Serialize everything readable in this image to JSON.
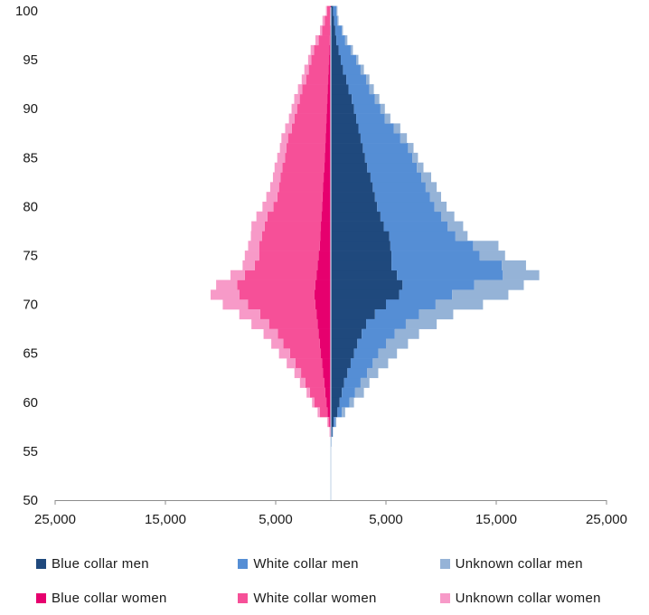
{
  "chart_data": {
    "type": "bar",
    "orientation": "horizontal-population-pyramid",
    "stacked": true,
    "y_axis": {
      "range": [
        50,
        100
      ],
      "ticks": [
        "50",
        "55",
        "60",
        "65",
        "70",
        "75",
        "80",
        "85",
        "90",
        "95",
        "100"
      ]
    },
    "x_axis": {
      "range": [
        -25000,
        25000
      ],
      "ticks": [
        "25,000",
        "15,000",
        "5,000",
        "5,000",
        "15,000",
        "25,000"
      ],
      "tick_values": [
        -25000,
        -15000,
        -5000,
        5000,
        15000,
        25000
      ]
    },
    "grid": false,
    "legend_position": "bottom",
    "ages": [
      56,
      57,
      58,
      59,
      60,
      61,
      62,
      63,
      64,
      65,
      66,
      67,
      68,
      69,
      70,
      71,
      72,
      73,
      74,
      75,
      76,
      77,
      78,
      79,
      80,
      81,
      82,
      83,
      84,
      85,
      86,
      87,
      88,
      89,
      90,
      91,
      92,
      93,
      94,
      95,
      96,
      97,
      98,
      99,
      100
    ],
    "series": [
      {
        "name": "Blue collar men",
        "side": "right",
        "color": "#1f497d",
        "values": [
          50,
          120,
          250,
          600,
          800,
          1000,
          1200,
          1500,
          1800,
          2100,
          2400,
          2800,
          3200,
          4000,
          5000,
          6200,
          6500,
          6000,
          5500,
          5500,
          5400,
          5300,
          4800,
          4500,
          4200,
          4000,
          3800,
          3600,
          3300,
          3100,
          2900,
          2700,
          2500,
          2300,
          2100,
          1900,
          1600,
          1400,
          1100,
          900,
          700,
          500,
          400,
          300,
          200
        ]
      },
      {
        "name": "White collar men",
        "side": "right",
        "color": "#558ed5",
        "values": [
          20,
          50,
          150,
          400,
          900,
          1200,
          1500,
          1800,
          2000,
          2200,
          2600,
          3000,
          3600,
          4000,
          4500,
          4800,
          6500,
          9600,
          10000,
          8000,
          7500,
          6000,
          5800,
          5500,
          5200,
          5000,
          4800,
          4600,
          4500,
          4300,
          4100,
          3600,
          3200,
          2600,
          2400,
          2100,
          1900,
          1800,
          1600,
          1400,
          1100,
          800,
          600,
          300,
          300
        ]
      },
      {
        "name": "Unknown collar men",
        "side": "right",
        "color": "#95b3d7",
        "values": [
          10,
          30,
          100,
          300,
          400,
          800,
          800,
          1000,
          1400,
          1700,
          2000,
          2200,
          2800,
          3100,
          4300,
          5100,
          4500,
          3300,
          2200,
          2300,
          2300,
          1100,
          1400,
          1200,
          1100,
          1000,
          1000,
          900,
          600,
          500,
          500,
          600,
          600,
          500,
          400,
          400,
          400,
          300,
          300,
          200,
          200,
          200,
          100,
          100,
          100
        ]
      },
      {
        "name": "Blue collar women",
        "side": "left",
        "color": "#e6006e",
        "values": [
          20,
          50,
          120,
          300,
          400,
          500,
          600,
          700,
          800,
          900,
          1000,
          1100,
          1200,
          1300,
          1400,
          1500,
          1400,
          1300,
          1200,
          1100,
          1000,
          950,
          900,
          850,
          800,
          750,
          700,
          650,
          600,
          560,
          520,
          480,
          440,
          400,
          360,
          320,
          280,
          240,
          200,
          160,
          130,
          100,
          80,
          60,
          40
        ]
      },
      {
        "name": "White collar women",
        "side": "left",
        "color": "#f65098",
        "values": [
          10,
          40,
          100,
          700,
          1100,
          1400,
          1700,
          2000,
          2400,
          2800,
          3300,
          3700,
          4400,
          5100,
          6100,
          6800,
          7100,
          6500,
          5700,
          5400,
          5500,
          5300,
          5100,
          4900,
          4400,
          4100,
          4000,
          3900,
          3800,
          3600,
          3500,
          3400,
          3100,
          2900,
          2700,
          2500,
          2300,
          2000,
          1800,
          1600,
          1400,
          1000,
          700,
          500,
          300
        ]
      },
      {
        "name": "Unknown collar women",
        "side": "left",
        "color": "#f79ac8",
        "values": [
          10,
          30,
          100,
          200,
          200,
          300,
          500,
          600,
          800,
          1000,
          1100,
          1300,
          1600,
          1900,
          2300,
          2600,
          1900,
          1300,
          1100,
          1300,
          1000,
          1000,
          1200,
          1000,
          1000,
          1000,
          800,
          700,
          700,
          700,
          600,
          600,
          600,
          500,
          500,
          500,
          400,
          400,
          400,
          300,
          300,
          300,
          200,
          200,
          100
        ]
      }
    ]
  }
}
